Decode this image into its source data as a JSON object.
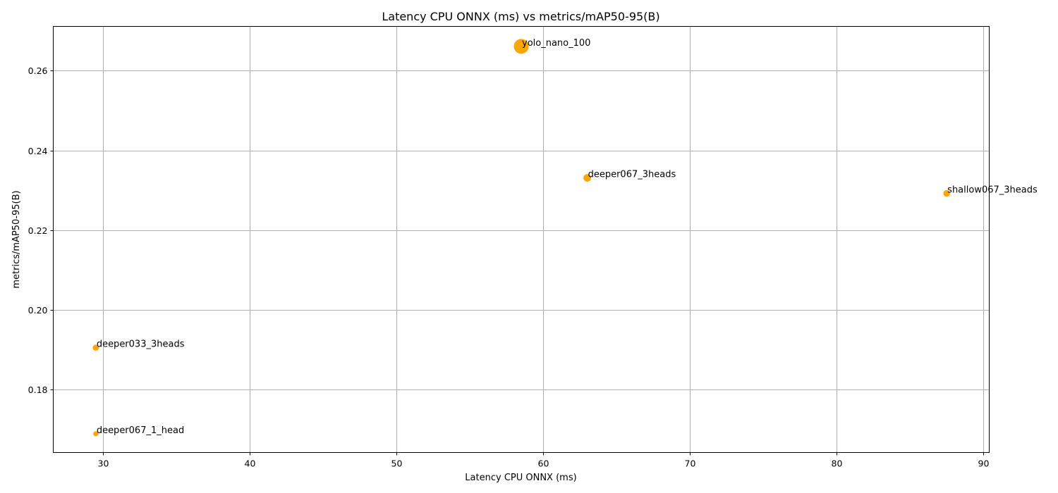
{
  "chart_data": {
    "type": "scatter",
    "title": "Latency CPU ONNX (ms) vs metrics/mAP50-95(B)",
    "xlabel": "Latency CPU ONNX (ms)",
    "ylabel": "metrics/mAP50-95(B)",
    "xlim": [
      26.6,
      90.4
    ],
    "ylim": [
      0.1642,
      0.2711
    ],
    "xticks": [
      30,
      40,
      50,
      60,
      70,
      80,
      90
    ],
    "yticks": [
      0.18,
      0.2,
      0.22,
      0.24,
      0.26
    ],
    "xtick_labels": [
      "30",
      "40",
      "50",
      "60",
      "70",
      "80",
      "90"
    ],
    "ytick_labels": [
      "0.18",
      "0.20",
      "0.22",
      "0.24",
      "0.26"
    ],
    "grid": true,
    "marker_color": "#ffa500",
    "points": [
      {
        "label": "yolo_nano_100",
        "x": 58.5,
        "y": 0.2661,
        "size": 3.0
      },
      {
        "label": "deeper067_3heads",
        "x": 63.0,
        "y": 0.2331,
        "size": 1.4
      },
      {
        "label": "shallow067_3heads",
        "x": 87.5,
        "y": 0.2292,
        "size": 1.2
      },
      {
        "label": "deeper033_3heads",
        "x": 29.5,
        "y": 0.1905,
        "size": 1.1
      },
      {
        "label": "deeper067_1_head",
        "x": 29.5,
        "y": 0.1689,
        "size": 0.9
      }
    ]
  }
}
